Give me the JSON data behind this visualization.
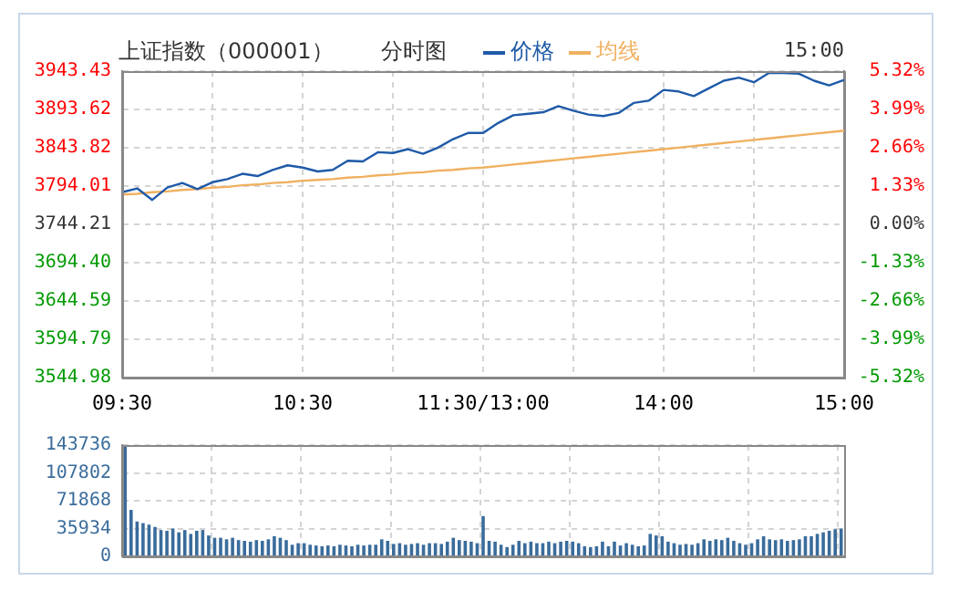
{
  "chart_data": [
    {
      "type": "line",
      "title": "上证指数（000001）",
      "subtitle": "分时图",
      "annotations": [
        "15:00"
      ],
      "legend": "top",
      "grid": true,
      "marker": "none",
      "categories": [
        "09:30",
        null,
        null,
        null,
        null,
        null,
        null,
        null,
        null,
        null,
        null,
        null,
        "10:30",
        null,
        null,
        null,
        null,
        null,
        null,
        null,
        null,
        null,
        null,
        null,
        "11:30/13:00",
        null,
        null,
        null,
        null,
        null,
        null,
        null,
        null,
        null,
        null,
        null,
        "14:00",
        null,
        null,
        null,
        null,
        null,
        null,
        null,
        null,
        null,
        null,
        null,
        "15:00"
      ],
      "series": [
        {
          "name": "价格",
          "color": "#1e5aa8",
          "values": [
            3786,
            3791,
            3776,
            3792,
            3798,
            3790,
            3799,
            3803,
            3810,
            3807,
            3815,
            3821,
            3818,
            3813,
            3815,
            3827,
            3826,
            3838,
            3837,
            3842,
            3836,
            3844,
            3855,
            3863,
            3863,
            3876,
            3886,
            3888,
            3890,
            3898,
            3892,
            3887,
            3885,
            3889,
            3902,
            3905,
            3919,
            3917,
            3911,
            3921,
            3931,
            3935,
            3929,
            3941,
            3941,
            3940,
            3931,
            3925,
            3932
          ]
        },
        {
          "name": "均线",
          "color": "#f0b060",
          "values": [
            3783,
            3784,
            3786,
            3787,
            3789,
            3790,
            3792,
            3793,
            3795,
            3796,
            3798,
            3799,
            3801,
            3802,
            3803,
            3805,
            3806,
            3808,
            3809,
            3811,
            3812,
            3814,
            3815,
            3817,
            3818,
            3820,
            3822,
            3824,
            3826,
            3828,
            3830,
            3832,
            3834,
            3836,
            3838,
            3840,
            3842,
            3844,
            3846,
            3848,
            3850,
            3852,
            3854,
            3856,
            3858,
            3860,
            3862,
            3864,
            3866
          ]
        }
      ],
      "ylim": [
        3544.98,
        3943.43
      ],
      "yticks": [
        3544.98,
        3594.79,
        3644.59,
        {
          "value": 3694.4,
          "label": "3694.40"
        },
        3744.21,
        3794.01,
        3843.82,
        3893.62,
        3943.43
      ],
      "y2lim": [
        -5.32,
        5.32
      ],
      "y2ticks": [
        {
          "value": -5.32,
          "label": "-5.32%"
        },
        {
          "value": -3.99,
          "label": "-3.99%"
        },
        {
          "value": -2.66,
          "label": "-2.66%"
        },
        {
          "value": -1.33,
          "label": "-1.33%"
        },
        {
          "value": 0,
          "label": "0.00%"
        },
        {
          "value": 1.33,
          "label": "1.33%"
        },
        {
          "value": 2.66,
          "label": "2.66%"
        },
        {
          "value": 3.99,
          "label": "3.99%"
        },
        {
          "value": 5.32,
          "label": "5.32%"
        }
      ]
    },
    {
      "type": "bar",
      "color": "#3a6c9c",
      "grid": true,
      "tick_labels": "y",
      "categories": [
        null,
        null,
        null,
        null,
        null,
        null,
        null,
        null,
        null,
        null,
        null,
        null,
        null,
        null,
        null,
        null,
        null,
        null,
        null,
        null,
        null,
        null,
        null,
        null,
        null,
        null,
        null,
        null,
        null,
        null,
        null,
        null,
        null,
        null,
        null,
        null,
        null,
        null,
        null,
        null,
        null,
        null,
        null,
        null,
        null,
        null,
        null,
        null,
        null,
        null,
        null,
        null,
        null,
        null,
        null,
        null,
        null,
        null,
        null,
        null,
        null,
        null,
        null,
        null,
        null,
        null,
        null,
        null,
        null,
        null,
        null,
        null,
        null,
        null,
        null,
        null,
        null,
        null,
        null,
        null,
        null,
        null,
        null,
        null,
        null,
        null,
        null,
        null,
        null,
        null,
        null,
        null,
        null,
        null,
        null,
        null,
        null,
        null,
        null,
        null,
        null,
        null,
        null,
        null,
        null,
        null,
        null,
        null,
        null,
        null,
        null,
        null,
        null,
        null,
        null,
        null,
        null,
        null,
        null,
        null,
        null
      ],
      "values": [
        143000,
        60000,
        45000,
        43000,
        41000,
        38000,
        34000,
        33000,
        36000,
        31000,
        34000,
        29000,
        33000,
        34000,
        27000,
        24000,
        24000,
        22000,
        24000,
        21000,
        20000,
        19000,
        21000,
        20000,
        22000,
        26000,
        24000,
        21000,
        15000,
        17000,
        17000,
        15000,
        14000,
        13000,
        14000,
        13000,
        15000,
        14000,
        13000,
        15000,
        14000,
        15000,
        15000,
        22000,
        20000,
        16000,
        17000,
        15000,
        16000,
        17000,
        15000,
        17000,
        17000,
        16000,
        19000,
        24000,
        21000,
        20000,
        19000,
        17000,
        52000,
        20000,
        19000,
        15000,
        12000,
        15000,
        20000,
        17000,
        19000,
        17000,
        17000,
        19000,
        17000,
        19000,
        20000,
        19000,
        17000,
        13000,
        12000,
        13000,
        19000,
        13000,
        19000,
        14000,
        17000,
        15000,
        13000,
        14000,
        29000,
        27000,
        26000,
        19000,
        17000,
        15000,
        16000,
        15000,
        17000,
        22000,
        20000,
        22000,
        21000,
        24000,
        20000,
        17000,
        15000,
        17000,
        22000,
        26000,
        22000,
        21000,
        22000,
        20000,
        21000,
        22000,
        26000,
        26000,
        29000,
        31000,
        33000,
        35000,
        36000
      ],
      "ylim": [
        0,
        143736
      ],
      "yticks": [
        0,
        35934,
        71868,
        107802,
        143736
      ]
    }
  ]
}
